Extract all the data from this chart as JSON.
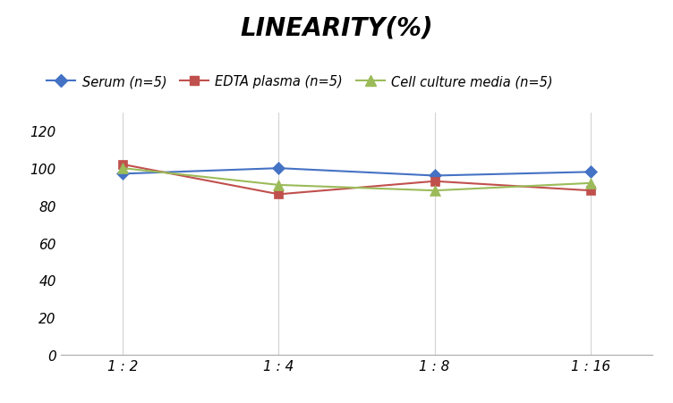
{
  "title": "LINEARITY(%)",
  "x_labels": [
    "1 : 2",
    "1 : 4",
    "1 : 8",
    "1 : 16"
  ],
  "x_positions": [
    0,
    1,
    2,
    3
  ],
  "series": [
    {
      "label": "Serum (n=5)",
      "color": "#4472C4",
      "marker": "D",
      "markersize": 7,
      "values": [
        97,
        100,
        96,
        98
      ]
    },
    {
      "label": "EDTA plasma (n=5)",
      "color": "#C0504D",
      "marker": "s",
      "markersize": 7,
      "values": [
        102,
        86,
        93,
        88
      ]
    },
    {
      "label": "Cell culture media (n=5)",
      "color": "#9BBB59",
      "marker": "^",
      "markersize": 8,
      "values": [
        100,
        91,
        88,
        92
      ]
    }
  ],
  "ylim": [
    0,
    130
  ],
  "yticks": [
    0,
    20,
    40,
    60,
    80,
    100,
    120
  ],
  "xlim": [
    -0.4,
    3.4
  ],
  "background_color": "#ffffff",
  "grid_color": "#d3d3d3",
  "title_fontsize": 20,
  "legend_fontsize": 10.5,
  "tick_fontsize": 11
}
